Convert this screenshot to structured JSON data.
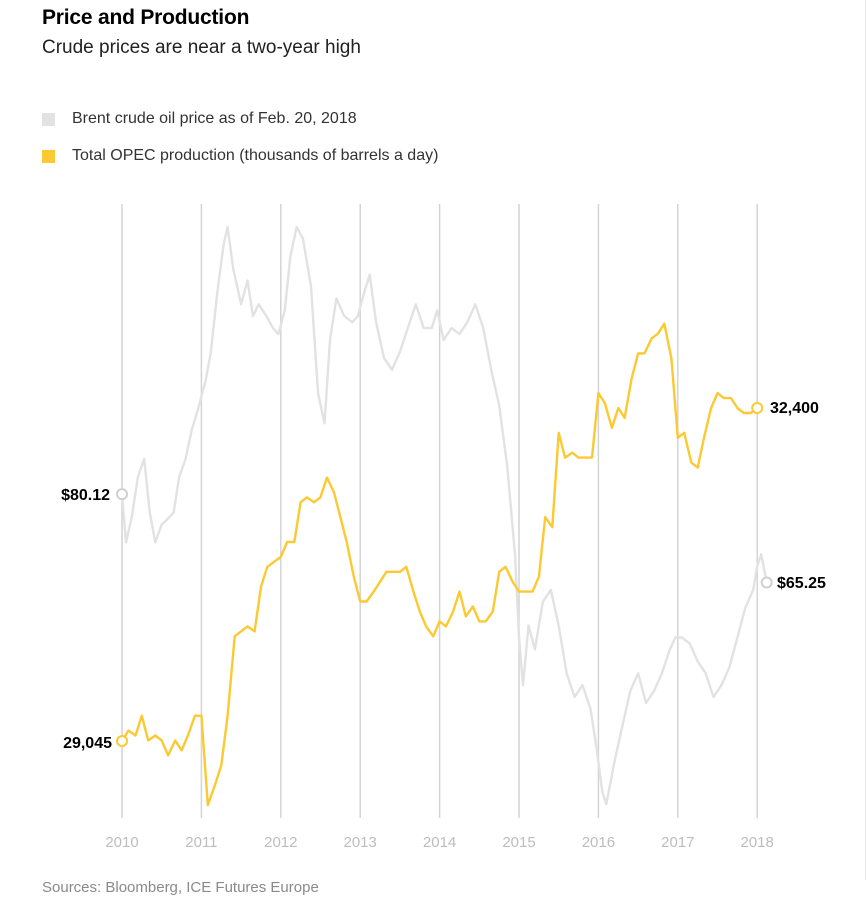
{
  "title": "Price and Production",
  "subtitle": "Crude prices are near a two-year high",
  "source": "Sources: Bloomberg, ICE Futures Europe",
  "colors": {
    "brent": "#e2e2e2",
    "opec": "#fcc932",
    "grid": "#d4d4d4"
  },
  "legend": [
    {
      "label": "Brent crude oil price as of Feb. 20, 2018",
      "color": "#e2e2e2"
    },
    {
      "label": "Total OPEC production (thousands of barrels a day)",
      "color": "#fcc932"
    }
  ],
  "chart_data": {
    "type": "line",
    "title": "Price and Production",
    "subtitle": "Crude prices are near a two-year high",
    "x_ticks": [
      "2010",
      "2011",
      "2012",
      "2013",
      "2014",
      "2015",
      "2016",
      "2017",
      "2018"
    ],
    "grid": "vertical",
    "legend_position": "top-left",
    "series": [
      {
        "name": "Brent crude oil price as of Feb. 20, 2018",
        "color": "#e2e2e2",
        "start_label": "$80.12",
        "end_label": "$65.25",
        "points": [
          [
            2010.0,
            80.1
          ],
          [
            2010.05,
            72
          ],
          [
            2010.12,
            76
          ],
          [
            2010.2,
            83
          ],
          [
            2010.28,
            86
          ],
          [
            2010.35,
            77
          ],
          [
            2010.42,
            72
          ],
          [
            2010.5,
            75
          ],
          [
            2010.58,
            76
          ],
          [
            2010.65,
            77
          ],
          [
            2010.72,
            83
          ],
          [
            2010.8,
            86
          ],
          [
            2010.88,
            91
          ],
          [
            2010.95,
            94
          ],
          [
            2011.05,
            99
          ],
          [
            2011.12,
            104
          ],
          [
            2011.2,
            114
          ],
          [
            2011.28,
            122
          ],
          [
            2011.33,
            125
          ],
          [
            2011.4,
            118
          ],
          [
            2011.5,
            112
          ],
          [
            2011.58,
            116
          ],
          [
            2011.65,
            110
          ],
          [
            2011.72,
            112
          ],
          [
            2011.82,
            110
          ],
          [
            2011.9,
            108
          ],
          [
            2011.97,
            107
          ],
          [
            2012.05,
            111
          ],
          [
            2012.12,
            120
          ],
          [
            2012.2,
            125
          ],
          [
            2012.28,
            123
          ],
          [
            2012.38,
            115
          ],
          [
            2012.47,
            97
          ],
          [
            2012.55,
            92
          ],
          [
            2012.62,
            106
          ],
          [
            2012.7,
            113
          ],
          [
            2012.8,
            110
          ],
          [
            2012.9,
            109
          ],
          [
            2012.97,
            110
          ],
          [
            2013.05,
            114
          ],
          [
            2013.12,
            117
          ],
          [
            2013.2,
            109
          ],
          [
            2013.3,
            103
          ],
          [
            2013.4,
            101
          ],
          [
            2013.5,
            104
          ],
          [
            2013.6,
            108
          ],
          [
            2013.7,
            112
          ],
          [
            2013.8,
            108
          ],
          [
            2013.9,
            108
          ],
          [
            2013.97,
            111
          ],
          [
            2014.05,
            106
          ],
          [
            2014.15,
            108
          ],
          [
            2014.25,
            107
          ],
          [
            2014.35,
            109
          ],
          [
            2014.45,
            112
          ],
          [
            2014.55,
            108
          ],
          [
            2014.65,
            101
          ],
          [
            2014.75,
            95
          ],
          [
            2014.85,
            85
          ],
          [
            2014.95,
            70
          ],
          [
            2015.0,
            56
          ],
          [
            2015.05,
            48
          ],
          [
            2015.12,
            58
          ],
          [
            2015.2,
            54
          ],
          [
            2015.3,
            62
          ],
          [
            2015.4,
            64
          ],
          [
            2015.5,
            58
          ],
          [
            2015.6,
            50
          ],
          [
            2015.7,
            46
          ],
          [
            2015.8,
            48
          ],
          [
            2015.9,
            44
          ],
          [
            2015.97,
            38
          ],
          [
            2016.05,
            30
          ],
          [
            2016.1,
            28
          ],
          [
            2016.2,
            35
          ],
          [
            2016.3,
            41
          ],
          [
            2016.4,
            47
          ],
          [
            2016.5,
            50
          ],
          [
            2016.6,
            45
          ],
          [
            2016.7,
            47
          ],
          [
            2016.8,
            50
          ],
          [
            2016.9,
            54
          ],
          [
            2016.97,
            56
          ],
          [
            2017.05,
            56
          ],
          [
            2017.15,
            55
          ],
          [
            2017.25,
            52
          ],
          [
            2017.35,
            50
          ],
          [
            2017.45,
            46
          ],
          [
            2017.55,
            48
          ],
          [
            2017.65,
            51
          ],
          [
            2017.75,
            56
          ],
          [
            2017.85,
            61
          ],
          [
            2017.95,
            64
          ],
          [
            2018.0,
            68
          ],
          [
            2018.05,
            70
          ],
          [
            2018.12,
            65.25
          ]
        ]
      },
      {
        "name": "Total OPEC production (thousands of barrels a day)",
        "color": "#fcc932",
        "start_label": "29,045",
        "end_label": "32,400",
        "points": [
          [
            2010.0,
            29045
          ],
          [
            2010.08,
            29150
          ],
          [
            2010.17,
            29100
          ],
          [
            2010.25,
            29300
          ],
          [
            2010.33,
            29050
          ],
          [
            2010.42,
            29100
          ],
          [
            2010.5,
            29050
          ],
          [
            2010.58,
            28900
          ],
          [
            2010.67,
            29050
          ],
          [
            2010.75,
            28950
          ],
          [
            2010.83,
            29100
          ],
          [
            2010.92,
            29300
          ],
          [
            2011.0,
            29300
          ],
          [
            2011.08,
            28400
          ],
          [
            2011.17,
            28600
          ],
          [
            2011.25,
            28800
          ],
          [
            2011.33,
            29300
          ],
          [
            2011.42,
            30100
          ],
          [
            2011.5,
            30150
          ],
          [
            2011.58,
            30200
          ],
          [
            2011.67,
            30150
          ],
          [
            2011.75,
            30600
          ],
          [
            2011.83,
            30800
          ],
          [
            2012.0,
            30900
          ],
          [
            2012.08,
            31050
          ],
          [
            2012.17,
            31050
          ],
          [
            2012.25,
            31450
          ],
          [
            2012.33,
            31500
          ],
          [
            2012.42,
            31450
          ],
          [
            2012.5,
            31500
          ],
          [
            2012.58,
            31700
          ],
          [
            2012.67,
            31550
          ],
          [
            2012.75,
            31300
          ],
          [
            2012.83,
            31050
          ],
          [
            2012.92,
            30700
          ],
          [
            2013.0,
            30450
          ],
          [
            2013.08,
            30450
          ],
          [
            2013.17,
            30550
          ],
          [
            2013.25,
            30650
          ],
          [
            2013.33,
            30750
          ],
          [
            2013.42,
            30750
          ],
          [
            2013.5,
            30750
          ],
          [
            2013.58,
            30800
          ],
          [
            2013.67,
            30550
          ],
          [
            2013.75,
            30350
          ],
          [
            2013.83,
            30200
          ],
          [
            2013.92,
            30100
          ],
          [
            2014.0,
            30250
          ],
          [
            2014.08,
            30200
          ],
          [
            2014.17,
            30350
          ],
          [
            2014.25,
            30550
          ],
          [
            2014.33,
            30300
          ],
          [
            2014.42,
            30400
          ],
          [
            2014.5,
            30250
          ],
          [
            2014.58,
            30250
          ],
          [
            2014.67,
            30350
          ],
          [
            2014.75,
            30750
          ],
          [
            2014.83,
            30800
          ],
          [
            2014.92,
            30650
          ],
          [
            2015.0,
            30550
          ],
          [
            2015.08,
            30550
          ],
          [
            2015.17,
            30550
          ],
          [
            2015.25,
            30700
          ],
          [
            2015.33,
            31300
          ],
          [
            2015.42,
            31200
          ],
          [
            2015.5,
            32150
          ],
          [
            2015.58,
            31900
          ],
          [
            2015.67,
            31950
          ],
          [
            2015.75,
            31900
          ],
          [
            2015.83,
            31900
          ],
          [
            2015.92,
            31900
          ],
          [
            2016.0,
            32550
          ],
          [
            2016.08,
            32450
          ],
          [
            2016.17,
            32200
          ],
          [
            2016.25,
            32400
          ],
          [
            2016.33,
            32300
          ],
          [
            2016.42,
            32700
          ],
          [
            2016.5,
            32950
          ],
          [
            2016.58,
            32950
          ],
          [
            2016.67,
            33100
          ],
          [
            2016.75,
            33150
          ],
          [
            2016.83,
            33250
          ],
          [
            2016.92,
            32900
          ],
          [
            2017.0,
            32100
          ],
          [
            2017.08,
            32150
          ],
          [
            2017.17,
            31850
          ],
          [
            2017.25,
            31800
          ],
          [
            2017.33,
            32100
          ],
          [
            2017.42,
            32400
          ],
          [
            2017.5,
            32550
          ],
          [
            2017.58,
            32500
          ],
          [
            2017.67,
            32500
          ],
          [
            2017.75,
            32400
          ],
          [
            2017.83,
            32350
          ],
          [
            2017.92,
            32350
          ],
          [
            2018.0,
            32400
          ]
        ]
      }
    ]
  }
}
